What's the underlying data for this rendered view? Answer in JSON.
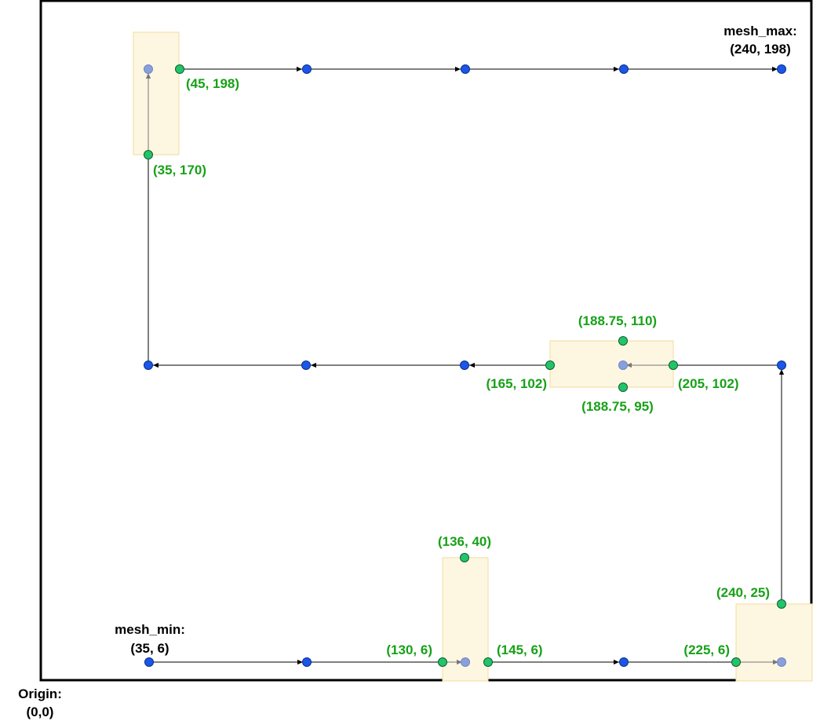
{
  "origin": {
    "line1": "Origin:",
    "line2": "(0,0)"
  },
  "mesh_min": {
    "line1": "mesh_min:",
    "line2": "(35, 6)"
  },
  "mesh_max": {
    "line1": "mesh_max:",
    "line2": "(240, 198)"
  },
  "point_labels": {
    "p45_198": "(45, 198)",
    "p35_170": "(35, 170)",
    "p188_110": "(188.75, 110)",
    "p165_102": "(165, 102)",
    "p205_102": "(205, 102)",
    "p188_95": "(188.75, 95)",
    "p136_40": "(136, 40)",
    "p240_25": "(240, 25)",
    "p130_6": "(130, 6)",
    "p145_6": "(145, 6)",
    "p225_6": "(225, 6)"
  },
  "colors": {
    "mesh_point": "#1a56e8",
    "probe_point": "#22c46a",
    "skipped_point": "#8aa0dc",
    "zone_fill": "#fdf6e1",
    "zone_stroke": "#f1dc9c",
    "label_green": "#17a117",
    "path_line": "#000000"
  }
}
